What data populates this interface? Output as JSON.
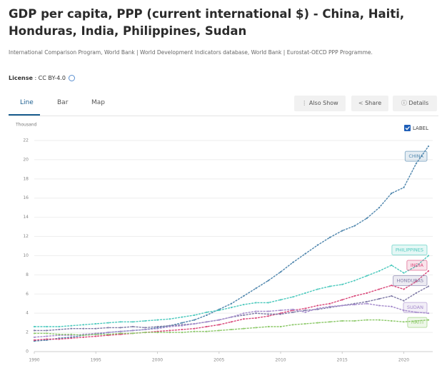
{
  "chart_data": {
    "type": "line",
    "title": "GDP per capita, PPP (current international $) - China, Haiti, Honduras, India, Philippines, Sudan",
    "source": "International Comparison Program, World Bank | World Development Indicators database, World Bank | Eurostat-OECD PPP Programme.",
    "license_label": "License",
    "license": ": CC BY-4.0",
    "tabs": [
      "Line",
      "Bar",
      "Map"
    ],
    "buttons": [
      "Also Show",
      "Share",
      "Details"
    ],
    "label_toggle": "LABEL",
    "y_unit": "Thousand",
    "x": [
      1990,
      1991,
      1992,
      1993,
      1994,
      1995,
      1996,
      1997,
      1998,
      1999,
      2000,
      2001,
      2002,
      2003,
      2004,
      2005,
      2006,
      2007,
      2008,
      2009,
      2010,
      2011,
      2012,
      2013,
      2014,
      2015,
      2016,
      2017,
      2018,
      2019,
      2020,
      2021,
      2022
    ],
    "xlim": [
      1990,
      2022
    ],
    "xticks": [
      1990,
      1995,
      2000,
      2005,
      2010,
      2015,
      2020
    ],
    "ylim": [
      0,
      22
    ],
    "yticks": [
      0,
      2,
      4,
      6,
      8,
      10,
      12,
      14,
      16,
      18,
      20,
      22
    ],
    "grid": true,
    "series": [
      {
        "name": "CHINA",
        "color": "#4f86ad",
        "values": [
          1.1,
          1.2,
          1.4,
          1.5,
          1.7,
          1.8,
          2.0,
          2.1,
          2.2,
          2.3,
          2.5,
          2.7,
          3.0,
          3.3,
          3.8,
          4.4,
          5.0,
          5.8,
          6.6,
          7.4,
          8.3,
          9.3,
          10.2,
          11.1,
          11.9,
          12.6,
          13.1,
          13.9,
          15.0,
          16.5,
          17.1,
          19.6,
          21.4
        ]
      },
      {
        "name": "PHILIPPINES",
        "color": "#4cc9bd",
        "values": [
          2.6,
          2.6,
          2.6,
          2.7,
          2.8,
          2.9,
          3.0,
          3.1,
          3.1,
          3.2,
          3.3,
          3.4,
          3.6,
          3.8,
          4.1,
          4.3,
          4.6,
          4.9,
          5.1,
          5.1,
          5.4,
          5.7,
          6.1,
          6.5,
          6.8,
          7.0,
          7.4,
          7.9,
          8.4,
          9.0,
          8.2,
          8.9,
          10.0
        ]
      },
      {
        "name": "INDIA",
        "color": "#d9487a",
        "values": [
          1.2,
          1.3,
          1.3,
          1.4,
          1.5,
          1.6,
          1.7,
          1.8,
          1.9,
          2.0,
          2.1,
          2.2,
          2.3,
          2.4,
          2.6,
          2.8,
          3.1,
          3.4,
          3.5,
          3.7,
          4.0,
          4.3,
          4.5,
          4.8,
          5.0,
          5.4,
          5.8,
          6.1,
          6.5,
          6.9,
          6.5,
          7.3,
          8.4
        ]
      },
      {
        "name": "HONDURAS",
        "color": "#7f7aa6",
        "values": [
          2.2,
          2.2,
          2.3,
          2.4,
          2.4,
          2.4,
          2.5,
          2.5,
          2.6,
          2.5,
          2.6,
          2.7,
          2.8,
          2.9,
          3.1,
          3.3,
          3.6,
          3.8,
          4.0,
          3.9,
          3.9,
          4.1,
          4.3,
          4.4,
          4.6,
          4.8,
          5.0,
          5.2,
          5.5,
          5.8,
          5.3,
          6.1,
          6.8
        ]
      },
      {
        "name": "SUDAN",
        "color": "#a58bcc",
        "values": [
          1.5,
          1.6,
          1.7,
          1.7,
          1.8,
          1.9,
          2.0,
          2.1,
          2.2,
          2.3,
          2.4,
          2.6,
          2.7,
          2.9,
          3.1,
          3.3,
          3.6,
          4.0,
          4.2,
          4.2,
          4.3,
          4.4,
          4.1,
          4.5,
          4.7,
          4.8,
          4.9,
          5.0,
          4.8,
          4.7,
          4.3,
          4.1,
          4.0
        ]
      },
      {
        "name": "HAITI",
        "color": "#8dc96a",
        "values": [
          1.9,
          1.9,
          1.8,
          1.8,
          1.7,
          1.8,
          1.8,
          1.9,
          1.9,
          2.0,
          2.0,
          2.0,
          2.0,
          2.1,
          2.1,
          2.2,
          2.3,
          2.4,
          2.5,
          2.6,
          2.6,
          2.8,
          2.9,
          3.0,
          3.1,
          3.2,
          3.2,
          3.3,
          3.3,
          3.2,
          3.1,
          3.2,
          3.3
        ]
      }
    ]
  }
}
